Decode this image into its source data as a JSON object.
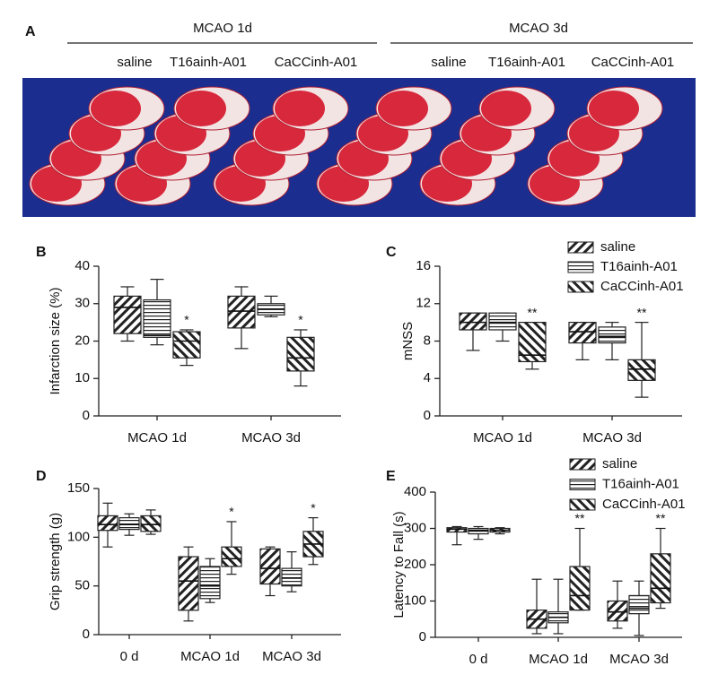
{
  "panel_a": {
    "letter": "A",
    "groups": [
      {
        "label": "MCAO 1d",
        "items": [
          "saline",
          "T16ainh-A01",
          "CaCCinh-A01"
        ]
      },
      {
        "label": "MCAO 3d",
        "items": [
          "saline",
          "T16ainh-A01",
          "CaCCinh-A01"
        ]
      }
    ]
  },
  "chart_data": [
    {
      "type": "box",
      "panel": "B",
      "ylabel": "Infarction size (%)",
      "categories": [
        "MCAO 1d",
        "MCAO 3d"
      ],
      "ylim": [
        0,
        40
      ],
      "yticks": [
        0,
        10,
        20,
        30,
        40
      ],
      "legend": false,
      "series": [
        {
          "pattern": "backslash",
          "values": [
            {
              "min": 20,
              "q1": 22,
              "median": 29,
              "q3": 32,
              "max": 34.5
            },
            {
              "min": 18,
              "q1": 23.5,
              "median": 28,
              "q3": 32,
              "max": 34.5
            }
          ],
          "annotations": [
            null,
            null
          ]
        },
        {
          "pattern": "horizontal",
          "values": [
            {
              "min": 19,
              "q1": 21,
              "median": 21.5,
              "q3": 31,
              "max": 36.5
            },
            {
              "min": 26.5,
              "q1": 27,
              "median": 28.5,
              "q3": 30,
              "max": 32
            }
          ],
          "annotations": [
            null,
            null
          ]
        },
        {
          "pattern": "slash",
          "values": [
            {
              "min": 13.5,
              "q1": 15.5,
              "median": 20,
              "q3": 22.5,
              "max": 23
            },
            {
              "min": 8,
              "q1": 12,
              "median": 15.5,
              "q3": 21,
              "max": 23
            }
          ],
          "annotations": [
            "*",
            "*"
          ]
        }
      ]
    },
    {
      "type": "box",
      "panel": "C",
      "ylabel": "mNSS",
      "categories": [
        "MCAO 1d",
        "MCAO 3d"
      ],
      "ylim": [
        0,
        16
      ],
      "yticks": [
        0,
        4,
        8,
        12,
        16
      ],
      "legend": "upper right",
      "series": [
        {
          "name": "saline",
          "pattern": "backslash",
          "values": [
            {
              "min": 7,
              "q1": 9.2,
              "median": 10,
              "q3": 11,
              "max": 11
            },
            {
              "min": 6,
              "q1": 7.8,
              "median": 9,
              "q3": 10,
              "max": 10
            }
          ],
          "annotations": [
            null,
            null
          ]
        },
        {
          "name": "T16ainh-A01",
          "pattern": "horizontal",
          "values": [
            {
              "min": 8,
              "q1": 9.2,
              "median": 10,
              "q3": 11,
              "max": 11
            },
            {
              "min": 6,
              "q1": 7.8,
              "median": 8.5,
              "q3": 9.5,
              "max": 10
            }
          ],
          "annotations": [
            null,
            null
          ]
        },
        {
          "name": "CaCCinh-A01",
          "pattern": "slash",
          "values": [
            {
              "min": 5,
              "q1": 5.8,
              "median": 6.5,
              "q3": 10,
              "max": 10
            },
            {
              "min": 2,
              "q1": 3.8,
              "median": 5,
              "q3": 6,
              "max": 10
            }
          ],
          "annotations": [
            "**",
            "**"
          ]
        }
      ]
    },
    {
      "type": "box",
      "panel": "D",
      "ylabel": "Grip strength (g)",
      "categories": [
        "0 d",
        "MCAO 1d",
        "MCAO 3d"
      ],
      "ylim": [
        0,
        150
      ],
      "yticks": [
        0,
        50,
        100,
        150
      ],
      "legend": false,
      "series": [
        {
          "pattern": "backslash",
          "values": [
            {
              "min": 90,
              "q1": 107,
              "median": 113,
              "q3": 122,
              "max": 135
            },
            {
              "min": 14,
              "q1": 25,
              "median": 55,
              "q3": 80,
              "max": 90
            },
            {
              "min": 40,
              "q1": 52,
              "median": 68,
              "q3": 88,
              "max": 90
            }
          ],
          "annotations": [
            null,
            null,
            null
          ]
        },
        {
          "pattern": "horizontal",
          "values": [
            {
              "min": 102,
              "q1": 108,
              "median": 113,
              "q3": 120,
              "max": 124
            },
            {
              "min": 33,
              "q1": 37,
              "median": 50,
              "q3": 70,
              "max": 78
            },
            {
              "min": 44,
              "q1": 50,
              "median": 58,
              "q3": 68,
              "max": 85
            }
          ],
          "annotations": [
            null,
            null,
            null
          ]
        },
        {
          "pattern": "slash",
          "values": [
            {
              "min": 103,
              "q1": 106,
              "median": 113,
              "q3": 122,
              "max": 128
            },
            {
              "min": 62,
              "q1": 70,
              "median": 78,
              "q3": 90,
              "max": 116
            },
            {
              "min": 72,
              "q1": 80,
              "median": 93,
              "q3": 106,
              "max": 120
            }
          ],
          "annotations": [
            null,
            "*",
            "*"
          ]
        }
      ]
    },
    {
      "type": "box",
      "panel": "E",
      "ylabel": "Latency to Fall (s)",
      "categories": [
        "0 d",
        "MCAO 1d",
        "MCAO 3d"
      ],
      "ylim": [
        0,
        400
      ],
      "yticks": [
        0,
        100,
        200,
        300,
        400
      ],
      "legend": "upper right",
      "series": [
        {
          "name": "saline",
          "pattern": "backslash",
          "values": [
            {
              "min": 255,
              "q1": 290,
              "median": 298,
              "q3": 302,
              "max": 305
            },
            {
              "min": 10,
              "q1": 25,
              "median": 50,
              "q3": 75,
              "max": 160
            },
            {
              "min": 25,
              "q1": 45,
              "median": 70,
              "q3": 100,
              "max": 155
            }
          ],
          "annotations": [
            null,
            null,
            null
          ]
        },
        {
          "name": "T16ainh-A01",
          "pattern": "horizontal",
          "values": [
            {
              "min": 270,
              "q1": 285,
              "median": 295,
              "q3": 300,
              "max": 305
            },
            {
              "min": 10,
              "q1": 40,
              "median": 55,
              "q3": 70,
              "max": 160
            },
            {
              "min": 5,
              "q1": 65,
              "median": 80,
              "q3": 115,
              "max": 155
            }
          ],
          "annotations": [
            null,
            null,
            null
          ]
        },
        {
          "name": "CaCCinh-A01",
          "pattern": "slash",
          "values": [
            {
              "min": 285,
              "q1": 290,
              "median": 295,
              "q3": 300,
              "max": 302
            },
            {
              "min": 75,
              "q1": 75,
              "median": 115,
              "q3": 195,
              "max": 300
            },
            {
              "min": 80,
              "q1": 95,
              "median": 135,
              "q3": 230,
              "max": 300
            }
          ],
          "annotations": [
            null,
            "**",
            "**"
          ]
        }
      ]
    }
  ]
}
